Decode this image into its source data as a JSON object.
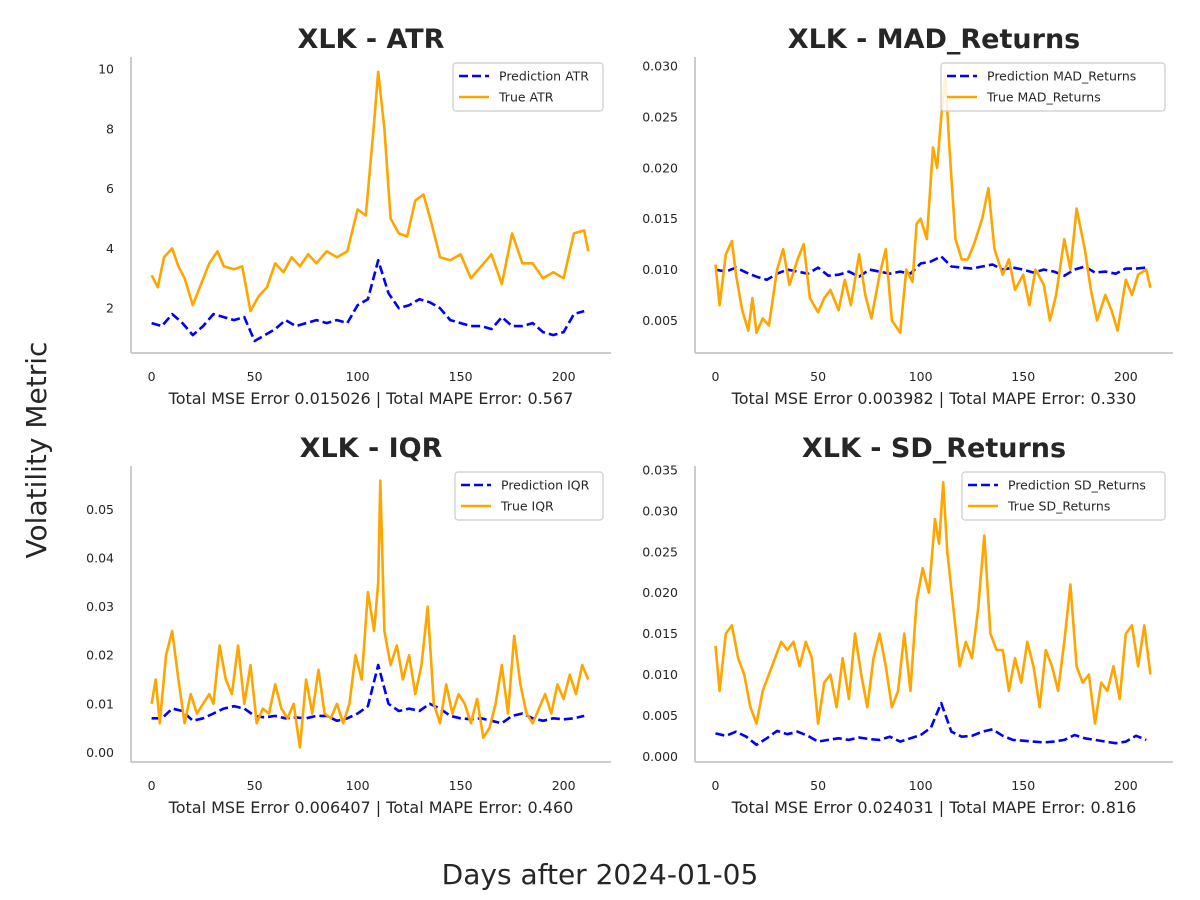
{
  "figure": {
    "supxlabel": "Days after 2024-01-05",
    "supylabel": "Volatility Metric"
  },
  "colors": {
    "prediction": "#0000ff",
    "true": "#ffa500",
    "axis": "#cccccc",
    "text": "#262626"
  },
  "chart_data": [
    {
      "type": "line",
      "title": "XLK - ATR",
      "xlabel": "Total MSE Error 0.015026 | Total MAPE Error: 0.567",
      "ylabel": "",
      "xlim": [
        -10,
        223
      ],
      "ylim": [
        0.5,
        10.4
      ],
      "xticks": [
        0,
        50,
        100,
        150,
        200
      ],
      "yticks": [
        2,
        4,
        6,
        8,
        10
      ],
      "ytick_labels": [
        "2",
        "4",
        "6",
        "8",
        "10"
      ],
      "legend_position": "upper right",
      "series": [
        {
          "name": "Prediction ATR",
          "style": "dashed",
          "color": "#0000ff",
          "x": [
            0,
            5,
            10,
            15,
            20,
            25,
            30,
            35,
            40,
            45,
            50,
            55,
            60,
            65,
            70,
            75,
            80,
            85,
            90,
            95,
            100,
            105,
            110,
            115,
            120,
            125,
            130,
            135,
            140,
            145,
            150,
            155,
            160,
            165,
            170,
            175,
            180,
            185,
            190,
            195,
            200,
            205,
            210
          ],
          "y": [
            1.5,
            1.4,
            1.8,
            1.5,
            1.1,
            1.4,
            1.8,
            1.7,
            1.6,
            1.7,
            0.9,
            1.1,
            1.3,
            1.6,
            1.4,
            1.5,
            1.6,
            1.5,
            1.6,
            1.5,
            2.1,
            2.3,
            3.6,
            2.5,
            2.0,
            2.1,
            2.3,
            2.2,
            2.0,
            1.6,
            1.5,
            1.4,
            1.4,
            1.3,
            1.7,
            1.4,
            1.4,
            1.5,
            1.2,
            1.1,
            1.2,
            1.8,
            1.9
          ]
        },
        {
          "name": "True ATR",
          "style": "solid",
          "color": "#ffa500",
          "x": [
            0,
            3,
            6,
            10,
            13,
            16,
            20,
            24,
            28,
            32,
            35,
            40,
            44,
            48,
            52,
            56,
            60,
            64,
            68,
            72,
            76,
            80,
            85,
            90,
            95,
            100,
            104,
            108,
            110,
            113,
            116,
            120,
            124,
            128,
            132,
            136,
            140,
            145,
            150,
            155,
            160,
            165,
            170,
            175,
            180,
            185,
            190,
            195,
            200,
            205,
            210,
            212
          ],
          "y": [
            3.1,
            2.7,
            3.7,
            4.0,
            3.4,
            3.0,
            2.1,
            2.8,
            3.5,
            3.9,
            3.4,
            3.3,
            3.4,
            1.9,
            2.4,
            2.7,
            3.5,
            3.2,
            3.7,
            3.4,
            3.8,
            3.5,
            3.9,
            3.7,
            3.9,
            5.3,
            5.1,
            8.2,
            9.9,
            8.0,
            5.0,
            4.5,
            4.4,
            5.6,
            5.8,
            4.8,
            3.7,
            3.6,
            3.8,
            3.0,
            3.4,
            3.8,
            2.8,
            4.5,
            3.5,
            3.5,
            3.0,
            3.2,
            3.0,
            4.5,
            4.6,
            3.9
          ]
        }
      ]
    },
    {
      "type": "line",
      "title": "XLK - MAD_Returns",
      "xlabel": "Total MSE Error 0.003982 | Total MAPE Error: 0.330",
      "ylabel": "",
      "xlim": [
        -10,
        223
      ],
      "ylim": [
        0.0018,
        0.0309
      ],
      "xticks": [
        0,
        50,
        100,
        150,
        200
      ],
      "yticks": [
        0.005,
        0.01,
        0.015,
        0.02,
        0.025,
        0.03
      ],
      "ytick_labels": [
        "0.005",
        "0.010",
        "0.015",
        "0.020",
        "0.025",
        "0.030"
      ],
      "legend_position": "upper right",
      "series": [
        {
          "name": "Prediction MAD_Returns",
          "style": "dashed",
          "color": "#0000ff",
          "x": [
            0,
            5,
            10,
            15,
            20,
            25,
            30,
            35,
            40,
            45,
            50,
            55,
            60,
            65,
            70,
            75,
            80,
            85,
            90,
            95,
            100,
            105,
            110,
            115,
            120,
            125,
            130,
            135,
            140,
            145,
            150,
            155,
            160,
            165,
            170,
            175,
            180,
            185,
            190,
            195,
            200,
            205,
            210
          ],
          "y": [
            0.01,
            0.0098,
            0.0102,
            0.0097,
            0.0093,
            0.009,
            0.0096,
            0.01,
            0.0098,
            0.0096,
            0.0102,
            0.0094,
            0.0095,
            0.0098,
            0.0093,
            0.01,
            0.0098,
            0.0096,
            0.0098,
            0.0096,
            0.0106,
            0.0108,
            0.0113,
            0.0103,
            0.0102,
            0.0101,
            0.0103,
            0.0105,
            0.01,
            0.0102,
            0.01,
            0.0097,
            0.01,
            0.0098,
            0.0094,
            0.01,
            0.0103,
            0.0097,
            0.0098,
            0.0096,
            0.0101,
            0.0101,
            0.0102
          ]
        },
        {
          "name": "True MAD_Returns",
          "style": "solid",
          "color": "#ffa500",
          "x": [
            0,
            2,
            5,
            8,
            10,
            13,
            16,
            18,
            20,
            23,
            26,
            30,
            33,
            36,
            40,
            43,
            46,
            50,
            53,
            56,
            60,
            63,
            66,
            70,
            73,
            76,
            80,
            83,
            86,
            90,
            93,
            96,
            98,
            100,
            103,
            106,
            108,
            110,
            112,
            114,
            117,
            120,
            123,
            126,
            130,
            133,
            136,
            140,
            143,
            146,
            150,
            153,
            156,
            160,
            163,
            166,
            170,
            173,
            176,
            180,
            183,
            186,
            190,
            193,
            196,
            200,
            203,
            206,
            210,
            212
          ],
          "y": [
            0.0105,
            0.0065,
            0.0115,
            0.0128,
            0.0095,
            0.006,
            0.004,
            0.0072,
            0.0038,
            0.0052,
            0.0045,
            0.01,
            0.012,
            0.0085,
            0.011,
            0.0125,
            0.0072,
            0.0058,
            0.0072,
            0.008,
            0.006,
            0.009,
            0.0065,
            0.0115,
            0.0075,
            0.0052,
            0.0095,
            0.012,
            0.005,
            0.0038,
            0.01,
            0.0088,
            0.0145,
            0.015,
            0.013,
            0.022,
            0.02,
            0.025,
            0.029,
            0.022,
            0.013,
            0.011,
            0.011,
            0.0125,
            0.015,
            0.018,
            0.012,
            0.0095,
            0.011,
            0.008,
            0.0095,
            0.0065,
            0.01,
            0.0085,
            0.005,
            0.0075,
            0.013,
            0.01,
            0.016,
            0.012,
            0.008,
            0.005,
            0.0075,
            0.006,
            0.004,
            0.009,
            0.0075,
            0.0095,
            0.01,
            0.0082
          ]
        }
      ]
    },
    {
      "type": "line",
      "title": "XLK - IQR",
      "xlabel": "Total MSE Error 0.006407 | Total MAPE Error: 0.460",
      "ylabel": "",
      "xlim": [
        -10,
        223
      ],
      "ylim": [
        -0.002,
        0.059
      ],
      "xticks": [
        0,
        50,
        100,
        150,
        200
      ],
      "yticks": [
        0.0,
        0.01,
        0.02,
        0.03,
        0.04,
        0.05
      ],
      "ytick_labels": [
        "0.00",
        "0.01",
        "0.02",
        "0.03",
        "0.04",
        "0.05"
      ],
      "legend_position": "upper right",
      "series": [
        {
          "name": "Prediction IQR",
          "style": "dashed",
          "color": "#0000ff",
          "x": [
            0,
            5,
            10,
            15,
            20,
            25,
            30,
            35,
            40,
            45,
            50,
            55,
            60,
            65,
            70,
            75,
            80,
            85,
            90,
            95,
            100,
            105,
            110,
            115,
            120,
            125,
            130,
            135,
            140,
            145,
            150,
            155,
            160,
            165,
            170,
            175,
            180,
            185,
            190,
            195,
            200,
            205,
            210
          ],
          "y": [
            0.007,
            0.007,
            0.009,
            0.0085,
            0.0065,
            0.007,
            0.008,
            0.009,
            0.0095,
            0.009,
            0.0075,
            0.0072,
            0.0075,
            0.007,
            0.0072,
            0.007,
            0.0075,
            0.0075,
            0.0065,
            0.007,
            0.008,
            0.0095,
            0.018,
            0.01,
            0.0085,
            0.009,
            0.0085,
            0.01,
            0.009,
            0.0075,
            0.007,
            0.0068,
            0.007,
            0.0065,
            0.006,
            0.0075,
            0.008,
            0.007,
            0.0065,
            0.007,
            0.0068,
            0.007,
            0.0075
          ]
        },
        {
          "name": "True IQR",
          "style": "solid",
          "color": "#ffa500",
          "x": [
            0,
            2,
            4,
            7,
            10,
            13,
            16,
            19,
            22,
            25,
            28,
            30,
            33,
            36,
            39,
            42,
            45,
            48,
            51,
            54,
            57,
            60,
            63,
            66,
            69,
            72,
            75,
            78,
            81,
            84,
            87,
            90,
            93,
            96,
            99,
            102,
            105,
            108,
            110,
            111,
            113,
            116,
            119,
            122,
            125,
            128,
            131,
            134,
            137,
            140,
            143,
            146,
            149,
            152,
            155,
            158,
            161,
            164,
            167,
            170,
            173,
            176,
            179,
            182,
            185,
            188,
            191,
            194,
            197,
            200,
            203,
            206,
            209,
            212
          ],
          "y": [
            0.01,
            0.015,
            0.006,
            0.02,
            0.025,
            0.015,
            0.006,
            0.012,
            0.008,
            0.01,
            0.012,
            0.01,
            0.022,
            0.015,
            0.012,
            0.022,
            0.01,
            0.018,
            0.006,
            0.009,
            0.008,
            0.014,
            0.009,
            0.007,
            0.01,
            0.001,
            0.015,
            0.008,
            0.017,
            0.008,
            0.007,
            0.01,
            0.006,
            0.01,
            0.02,
            0.015,
            0.033,
            0.025,
            0.035,
            0.056,
            0.025,
            0.018,
            0.022,
            0.015,
            0.02,
            0.012,
            0.018,
            0.03,
            0.01,
            0.006,
            0.014,
            0.008,
            0.012,
            0.01,
            0.006,
            0.011,
            0.003,
            0.005,
            0.01,
            0.018,
            0.008,
            0.024,
            0.014,
            0.008,
            0.006,
            0.009,
            0.012,
            0.008,
            0.014,
            0.011,
            0.016,
            0.012,
            0.018,
            0.015
          ]
        }
      ]
    },
    {
      "type": "line",
      "title": "XLK - SD_Returns",
      "xlabel": "Total MSE Error 0.024031 | Total MAPE Error: 0.816",
      "ylabel": "",
      "xlim": [
        -10,
        223
      ],
      "ylim": [
        -0.0007,
        0.0355
      ],
      "xticks": [
        0,
        50,
        100,
        150,
        200
      ],
      "yticks": [
        0.0,
        0.005,
        0.01,
        0.015,
        0.02,
        0.025,
        0.03,
        0.035
      ],
      "ytick_labels": [
        "0.000",
        "0.005",
        "0.010",
        "0.015",
        "0.020",
        "0.025",
        "0.030",
        "0.035"
      ],
      "legend_position": "upper right",
      "series": [
        {
          "name": "Prediction SD_Returns",
          "style": "dashed",
          "color": "#0000ff",
          "x": [
            0,
            5,
            10,
            15,
            20,
            25,
            30,
            35,
            40,
            45,
            50,
            55,
            60,
            65,
            70,
            75,
            80,
            85,
            90,
            95,
            100,
            105,
            110,
            115,
            120,
            125,
            130,
            135,
            140,
            145,
            150,
            155,
            160,
            165,
            170,
            175,
            180,
            185,
            190,
            195,
            200,
            205,
            210
          ],
          "y": [
            0.0028,
            0.0025,
            0.003,
            0.0024,
            0.0014,
            0.0022,
            0.0031,
            0.0027,
            0.003,
            0.0025,
            0.0018,
            0.002,
            0.0022,
            0.002,
            0.0023,
            0.0021,
            0.002,
            0.0024,
            0.0018,
            0.0022,
            0.0026,
            0.0035,
            0.0065,
            0.003,
            0.0024,
            0.0025,
            0.003,
            0.0033,
            0.0025,
            0.002,
            0.0019,
            0.0018,
            0.0017,
            0.0018,
            0.002,
            0.0026,
            0.0022,
            0.002,
            0.0018,
            0.0016,
            0.0018,
            0.0025,
            0.002
          ]
        },
        {
          "name": "True SD_Returns",
          "style": "solid",
          "color": "#ffa500",
          "x": [
            0,
            2,
            5,
            8,
            11,
            14,
            17,
            20,
            23,
            26,
            29,
            32,
            35,
            38,
            41,
            44,
            47,
            50,
            53,
            56,
            59,
            62,
            65,
            68,
            71,
            74,
            77,
            80,
            83,
            86,
            89,
            92,
            95,
            98,
            101,
            104,
            107,
            109,
            111,
            113,
            116,
            119,
            122,
            125,
            128,
            131,
            134,
            137,
            140,
            143,
            146,
            149,
            152,
            155,
            158,
            161,
            164,
            167,
            170,
            173,
            176,
            179,
            182,
            185,
            188,
            191,
            194,
            197,
            200,
            203,
            206,
            209,
            212
          ],
          "y": [
            0.0135,
            0.008,
            0.015,
            0.016,
            0.012,
            0.01,
            0.006,
            0.004,
            0.008,
            0.01,
            0.012,
            0.014,
            0.013,
            0.014,
            0.011,
            0.014,
            0.012,
            0.004,
            0.009,
            0.01,
            0.006,
            0.012,
            0.007,
            0.015,
            0.01,
            0.006,
            0.012,
            0.015,
            0.011,
            0.006,
            0.008,
            0.015,
            0.008,
            0.019,
            0.023,
            0.02,
            0.029,
            0.026,
            0.0335,
            0.025,
            0.018,
            0.011,
            0.014,
            0.012,
            0.018,
            0.027,
            0.015,
            0.013,
            0.013,
            0.008,
            0.012,
            0.009,
            0.014,
            0.011,
            0.006,
            0.013,
            0.011,
            0.008,
            0.014,
            0.021,
            0.011,
            0.009,
            0.01,
            0.004,
            0.009,
            0.008,
            0.011,
            0.007,
            0.015,
            0.016,
            0.011,
            0.016,
            0.01
          ]
        }
      ]
    }
  ]
}
